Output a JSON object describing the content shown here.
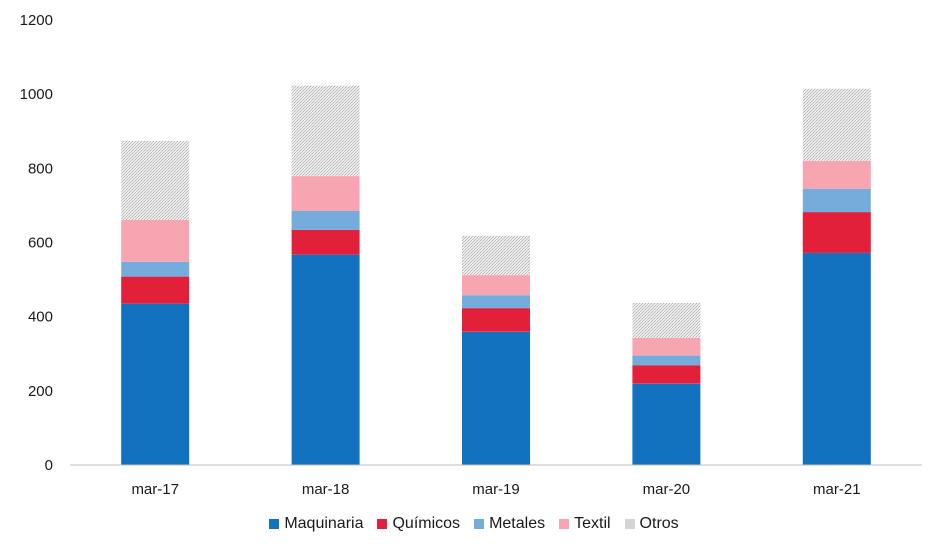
{
  "chart_data": {
    "type": "bar",
    "stacked": true,
    "categories": [
      "mar-17",
      "mar-18",
      "mar-19",
      "mar-20",
      "mar-21"
    ],
    "series": [
      {
        "name": "Maquinaria",
        "color": "#1272bf",
        "values": [
          435,
          567,
          359,
          219,
          572
        ]
      },
      {
        "name": "Químicos",
        "color": "#e3203a",
        "values": [
          73,
          67,
          64,
          50,
          110
        ]
      },
      {
        "name": "Metales",
        "color": "#74acdc",
        "values": [
          40,
          51,
          35,
          26,
          63
        ]
      },
      {
        "name": "Textil",
        "color": "#f8a5b2",
        "values": [
          113,
          94,
          54,
          48,
          75
        ]
      },
      {
        "name": "Otros",
        "color": "#d9d9d9",
        "values": [
          213,
          244,
          106,
          94,
          195
        ]
      }
    ],
    "y_ticks": [
      "0",
      "200",
      "400",
      "600",
      "800",
      "1000",
      "1200"
    ],
    "ylim": [
      0,
      1200
    ],
    "grid": false,
    "legend_position": "bottom"
  }
}
